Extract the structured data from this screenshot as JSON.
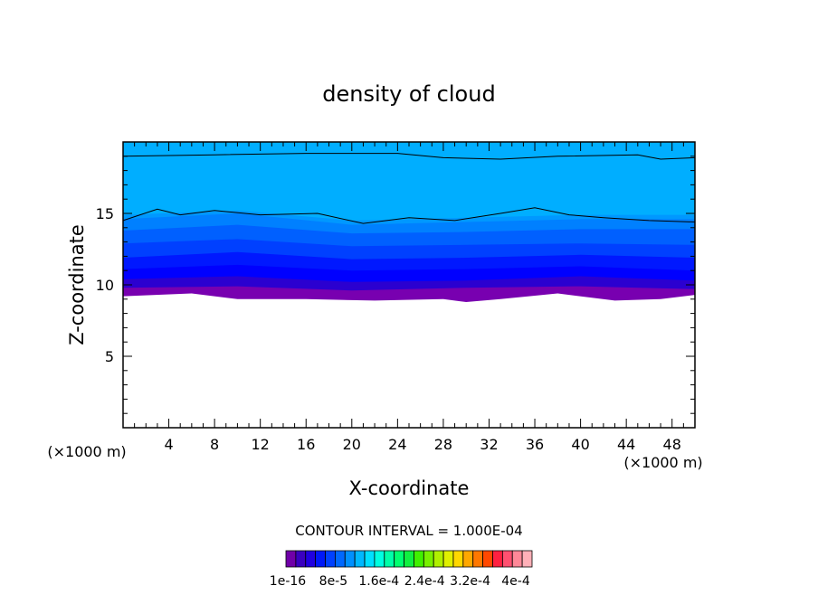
{
  "chart_data": {
    "type": "heatmap",
    "title": "density of cloud",
    "xlabel": "X-coordinate",
    "ylabel": "Z-coordinate",
    "x_unit_label": "(×1000 m)",
    "y_unit_label": "(×1000 m)",
    "xlim": [
      0,
      50
    ],
    "ylim": [
      0,
      20
    ],
    "x_ticks": [
      4,
      8,
      12,
      16,
      20,
      24,
      28,
      32,
      36,
      40,
      44,
      48
    ],
    "y_ticks": [
      5,
      10,
      15
    ],
    "contour_interval_label": "CONTOUR INTERVAL = 1.000E-04",
    "colorbar_labels": [
      "1e-16",
      "8e-5",
      "1.6e-4",
      "2.4e-4",
      "3.2e-4",
      "4e-4"
    ],
    "colorbar_colors": [
      "#7000a8",
      "#3a00c0",
      "#2000e0",
      "#0018f8",
      "#0040ff",
      "#0068ff",
      "#0090ff",
      "#00b8ff",
      "#00e0ff",
      "#00ffe0",
      "#00ffa8",
      "#00ff70",
      "#10f040",
      "#40f000",
      "#78f000",
      "#b0f000",
      "#e0f000",
      "#ffd800",
      "#ffa800",
      "#ff7800",
      "#ff4800",
      "#ff2040",
      "#ff5070",
      "#ff8898",
      "#ffb0b8"
    ],
    "layers": [
      {
        "level": "1e-16",
        "color": "#7800b0",
        "bottom": [
          [
            0,
            9.2
          ],
          [
            6,
            9.4
          ],
          [
            10,
            9.0
          ],
          [
            16,
            9.0
          ],
          [
            22,
            8.9
          ],
          [
            28,
            9.0
          ],
          [
            30,
            8.8
          ],
          [
            33,
            9.0
          ],
          [
            38,
            9.4
          ],
          [
            43,
            8.9
          ],
          [
            47,
            9.0
          ],
          [
            50,
            9.3
          ]
        ]
      },
      {
        "level": "2e-5",
        "color": "#2b00d0",
        "bottom": [
          [
            0,
            9.8
          ],
          [
            10,
            9.9
          ],
          [
            20,
            9.6
          ],
          [
            30,
            9.8
          ],
          [
            40,
            9.9
          ],
          [
            50,
            9.7
          ]
        ]
      },
      {
        "level": "4e-5",
        "color": "#0000ff",
        "bottom": [
          [
            0,
            10.4
          ],
          [
            10,
            10.6
          ],
          [
            20,
            10.2
          ],
          [
            30,
            10.3
          ],
          [
            40,
            10.6
          ],
          [
            50,
            10.3
          ]
        ]
      },
      {
        "level": "6e-5",
        "color": "#0018ff",
        "bottom": [
          [
            0,
            11.1
          ],
          [
            10,
            11.4
          ],
          [
            20,
            11.0
          ],
          [
            30,
            11.1
          ],
          [
            40,
            11.3
          ],
          [
            50,
            11.0
          ]
        ]
      },
      {
        "level": "8e-5",
        "color": "#0040ff",
        "bottom": [
          [
            0,
            11.9
          ],
          [
            10,
            12.3
          ],
          [
            20,
            11.8
          ],
          [
            30,
            11.9
          ],
          [
            40,
            12.1
          ],
          [
            50,
            11.9
          ]
        ]
      },
      {
        "level": "1e-4",
        "color": "#0060ff",
        "bottom": [
          [
            0,
            12.9
          ],
          [
            10,
            13.2
          ],
          [
            20,
            12.7
          ],
          [
            30,
            12.8
          ],
          [
            40,
            12.9
          ],
          [
            50,
            12.8
          ]
        ]
      },
      {
        "level": "1.2e-4",
        "color": "#0080ff",
        "bottom": [
          [
            0,
            13.8
          ],
          [
            10,
            14.2
          ],
          [
            20,
            13.6
          ],
          [
            30,
            13.7
          ],
          [
            40,
            13.9
          ],
          [
            50,
            13.9
          ]
        ]
      },
      {
        "level": "1.4e-4",
        "color": "#0098ff",
        "bottom": [
          [
            0,
            14.6
          ],
          [
            10,
            15.0
          ],
          [
            20,
            14.2
          ],
          [
            30,
            14.4
          ],
          [
            40,
            14.6
          ],
          [
            50,
            14.6
          ]
        ]
      },
      {
        "level": "1.6e-4",
        "color": "#00aeff",
        "bottom": [
          [
            0,
            14.9
          ],
          [
            10,
            15.2
          ],
          [
            20,
            14.5
          ],
          [
            30,
            14.7
          ],
          [
            40,
            14.9
          ],
          [
            50,
            14.9
          ]
        ]
      }
    ],
    "contour_lines": [
      {
        "color": "#000000",
        "points": [
          [
            0,
            19.0
          ],
          [
            8,
            19.1
          ],
          [
            16,
            19.2
          ],
          [
            24,
            19.2
          ],
          [
            28,
            18.9
          ],
          [
            33,
            18.8
          ],
          [
            38,
            19.0
          ],
          [
            45,
            19.1
          ],
          [
            47,
            18.8
          ],
          [
            50,
            18.9
          ]
        ]
      },
      {
        "color": "#000000",
        "points": [
          [
            0,
            14.5
          ],
          [
            3,
            15.3
          ],
          [
            5,
            14.9
          ],
          [
            8,
            15.2
          ],
          [
            12,
            14.9
          ],
          [
            17,
            15.0
          ],
          [
            21,
            14.3
          ],
          [
            25,
            14.7
          ],
          [
            29,
            14.5
          ],
          [
            33,
            15.0
          ],
          [
            36,
            15.4
          ],
          [
            39,
            14.9
          ],
          [
            42,
            14.7
          ],
          [
            46,
            14.5
          ],
          [
            50,
            14.4
          ]
        ]
      }
    ]
  }
}
